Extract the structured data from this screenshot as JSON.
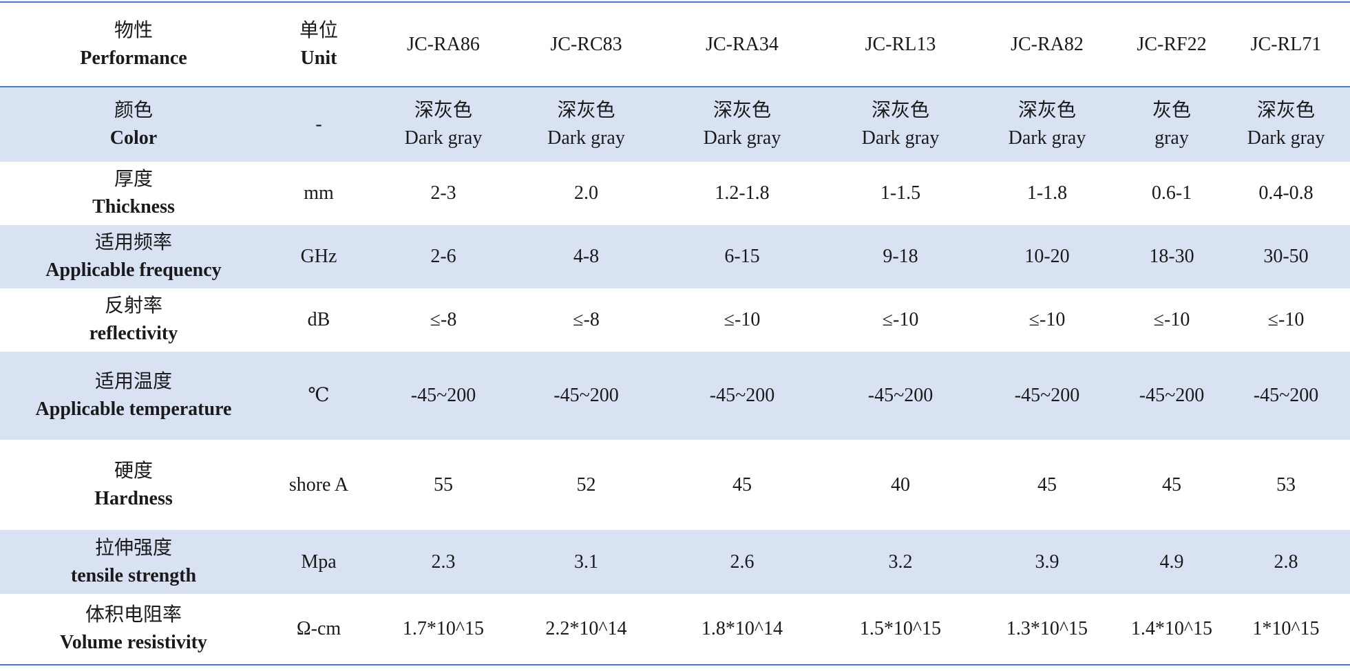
{
  "header": {
    "property": {
      "cn": "物性",
      "en": "Performance"
    },
    "unit": {
      "cn": "单位",
      "en": "Unit"
    },
    "models": [
      "JC-RA86",
      "JC-RC83",
      "JC-RA34",
      "JC-RL13",
      "JC-RA82",
      "JC-RF22",
      "JC-RL71"
    ]
  },
  "rows": [
    {
      "property": {
        "cn": "颜色",
        "en": "Color"
      },
      "unit": "-",
      "shaded": true,
      "values": [
        [
          "深灰色",
          "Dark gray"
        ],
        [
          "深灰色",
          "Dark gray"
        ],
        [
          "深灰色",
          "Dark gray"
        ],
        [
          "深灰色",
          "Dark gray"
        ],
        [
          "深灰色",
          "Dark gray"
        ],
        [
          "灰色",
          "gray"
        ],
        [
          "深灰色",
          "Dark gray"
        ]
      ]
    },
    {
      "property": {
        "cn": "厚度",
        "en": "Thickness"
      },
      "unit": "mm",
      "shaded": false,
      "values": [
        "2-3",
        "2.0",
        "1.2-1.8",
        "1-1.5",
        "1-1.8",
        "0.6-1",
        "0.4-0.8"
      ]
    },
    {
      "property": {
        "cn": "适用频率",
        "en": "Applicable frequency"
      },
      "unit": "GHz",
      "shaded": true,
      "values": [
        "2-6",
        "4-8",
        "6-15",
        "9-18",
        "10-20",
        "18-30",
        "30-50"
      ]
    },
    {
      "property": {
        "cn": "反射率",
        "en": "reflectivity"
      },
      "unit": "dB",
      "shaded": false,
      "values": [
        "≤-8",
        "≤-8",
        "≤-10",
        "≤-10",
        "≤-10",
        "≤-10",
        "≤-10"
      ]
    },
    {
      "property": {
        "cn": "适用温度",
        "en": "Applicable temperature"
      },
      "unit": "℃",
      "shaded": true,
      "values": [
        "-45~200",
        "-45~200",
        "-45~200",
        "-45~200",
        "-45~200",
        "-45~200",
        "-45~200"
      ]
    },
    {
      "property": {
        "cn": "硬度",
        "en": "Hardness"
      },
      "unit": "shore A",
      "shaded": false,
      "values": [
        "55",
        "52",
        "45",
        "40",
        "45",
        "45",
        "53"
      ]
    },
    {
      "property": {
        "cn": "拉伸强度",
        "en": "tensile strength"
      },
      "unit": "Mpa",
      "shaded": true,
      "values": [
        "2.3",
        "3.1",
        "2.6",
        "3.2",
        "3.9",
        "4.9",
        "2.8"
      ]
    },
    {
      "property": {
        "cn": "体积电阻率",
        "en": "Volume resistivity"
      },
      "unit": "Ω-cm",
      "shaded": false,
      "values": [
        "1.7*10^15",
        "2.2*10^14",
        "1.8*10^14",
        "1.5*10^15",
        "1.3*10^15",
        "1.4*10^15",
        "1*10^15"
      ]
    }
  ],
  "colors": {
    "rule": "#4a7bc8",
    "shade": "#d9e2f3"
  }
}
